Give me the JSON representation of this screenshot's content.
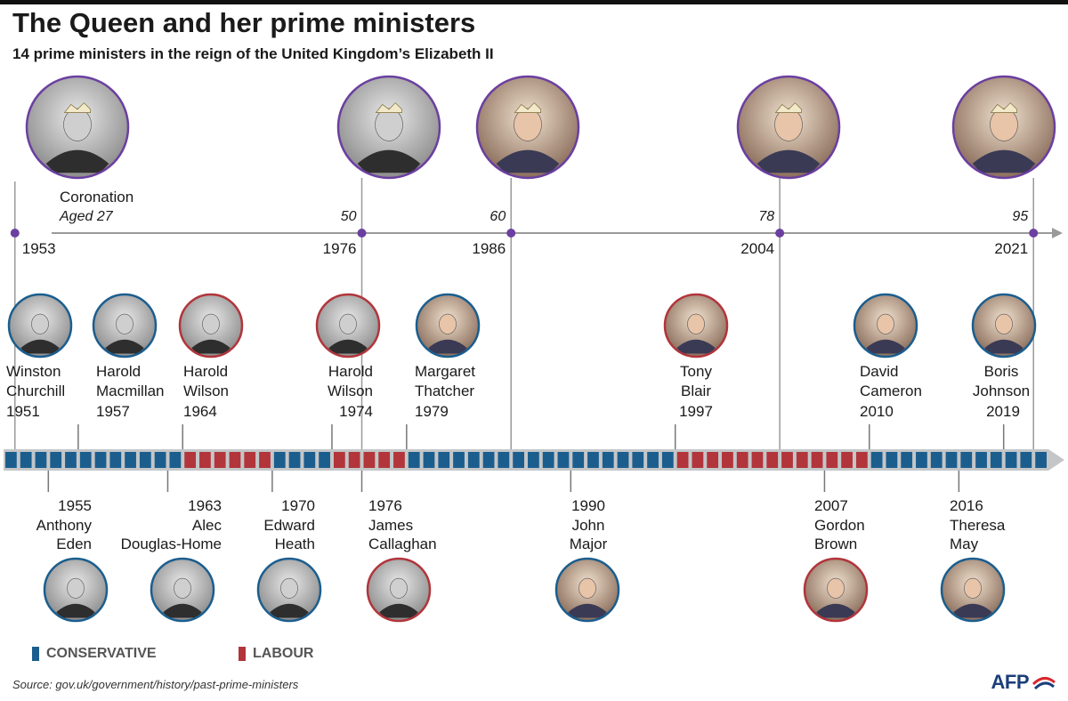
{
  "title": "The Queen and her prime ministers",
  "subtitle": "14 prime ministers in the reign of the United Kingdom’s Elizabeth II",
  "colors": {
    "conservative": "#1b5e8e",
    "labour": "#b1353b",
    "queen_ring": "#6b3fa0",
    "axis": "#9a9a9a"
  },
  "reign_timeline": {
    "start_year": 1952,
    "end_year": 2022,
    "segments": [
      {
        "from": 1952,
        "to": 1964,
        "party": "conservative"
      },
      {
        "from": 1964,
        "to": 1970,
        "party": "labour"
      },
      {
        "from": 1970,
        "to": 1974,
        "party": "conservative"
      },
      {
        "from": 1974,
        "to": 1979,
        "party": "labour"
      },
      {
        "from": 1979,
        "to": 1997,
        "party": "conservative"
      },
      {
        "from": 1997,
        "to": 2010,
        "party": "labour"
      },
      {
        "from": 2010,
        "to": 2022,
        "party": "conservative"
      }
    ]
  },
  "queen_milestones": [
    {
      "year": "1953",
      "label": "Coronation",
      "age_text": "Aged 27",
      "photo_icon": "queen-coronation-portrait-icon"
    },
    {
      "year": "1976",
      "age_text": "50",
      "photo_icon": "queen-crown-portrait-icon"
    },
    {
      "year": "1986",
      "age_text": "60",
      "photo_icon": "queen-tiara-portrait-icon"
    },
    {
      "year": "2004",
      "age_text": "78",
      "photo_icon": "queen-smiling-portrait-icon"
    },
    {
      "year": "2021",
      "age_text": "95",
      "photo_icon": "queen-hat-portrait-icon"
    }
  ],
  "prime_ministers_top": [
    {
      "first": "Winston",
      "last": "Churchill",
      "year": "1951",
      "party": "conservative"
    },
    {
      "first": "Harold",
      "last": "Macmillan",
      "year": "1957",
      "party": "conservative"
    },
    {
      "first": "Harold",
      "last": "Wilson",
      "year": "1964",
      "party": "labour"
    },
    {
      "first": "Harold",
      "last": "Wilson",
      "year": "1974",
      "party": "labour"
    },
    {
      "first": "Margaret",
      "last": "Thatcher",
      "year": "1979",
      "party": "conservative"
    },
    {
      "first": "Tony",
      "last": "Blair",
      "year": "1997",
      "party": "labour"
    },
    {
      "first": "David",
      "last": "Cameron",
      "year": "2010",
      "party": "conservative"
    },
    {
      "first": "Boris",
      "last": "Johnson",
      "year": "2019",
      "party": "conservative"
    }
  ],
  "prime_ministers_bottom": [
    {
      "first": "Anthony",
      "last": "Eden",
      "year": "1955",
      "party": "conservative"
    },
    {
      "first": "Alec",
      "last": "Douglas-Home",
      "year": "1963",
      "party": "conservative"
    },
    {
      "first": "Edward",
      "last": "Heath",
      "year": "1970",
      "party": "conservative"
    },
    {
      "first": "James",
      "last": "Callaghan",
      "year": "1976",
      "party": "labour"
    },
    {
      "first": "John",
      "last": "Major",
      "year": "1990",
      "party": "conservative"
    },
    {
      "first": "Gordon",
      "last": "Brown",
      "year": "2007",
      "party": "labour"
    },
    {
      "first": "Theresa",
      "last": "May",
      "year": "2016",
      "party": "conservative"
    }
  ],
  "legend": {
    "conservative": "CONSERVATIVE",
    "labour": "LABOUR"
  },
  "source": "Source: gov.uk/government/history/past-prime-ministers",
  "credit": "AFP"
}
